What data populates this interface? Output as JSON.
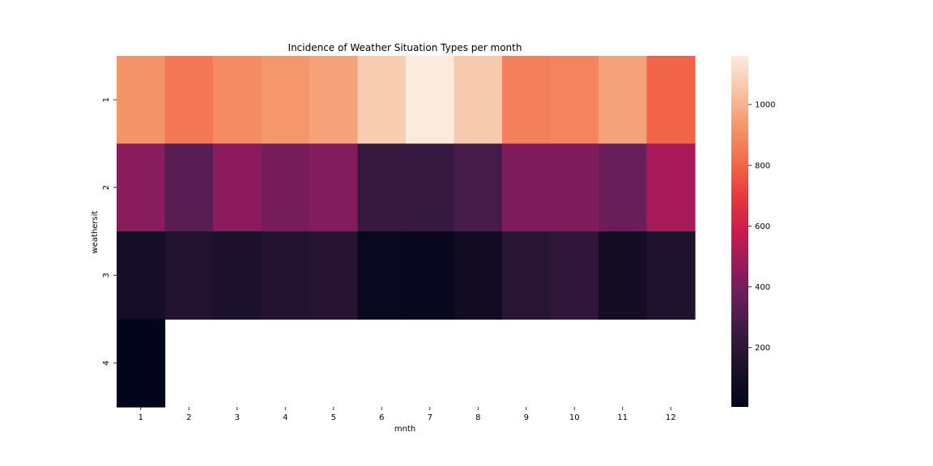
{
  "chart_data": {
    "type": "heatmap",
    "title": "Incidence of Weather Situation Types per month",
    "xlabel": "mnth",
    "ylabel": "weathersit",
    "x_categories": [
      "1",
      "2",
      "3",
      "4",
      "5",
      "6",
      "7",
      "8",
      "9",
      "10",
      "11",
      "12"
    ],
    "y_categories": [
      "1",
      "2",
      "3",
      "4"
    ],
    "values": [
      [
        920,
        850,
        900,
        930,
        960,
        1070,
        1160,
        1060,
        870,
        880,
        960,
        800
      ],
      [
        440,
        330,
        450,
        400,
        430,
        240,
        230,
        280,
        420,
        420,
        370,
        510
      ],
      [
        100,
        150,
        130,
        160,
        170,
        40,
        30,
        80,
        180,
        210,
        90,
        140
      ],
      [
        5,
        null,
        null,
        null,
        null,
        null,
        null,
        null,
        null,
        null,
        null,
        null
      ]
    ],
    "colorbar": {
      "vmin": 5,
      "vmax": 1160,
      "ticks": [
        200,
        400,
        600,
        800,
        1000
      ],
      "colormap": "rocket"
    }
  }
}
